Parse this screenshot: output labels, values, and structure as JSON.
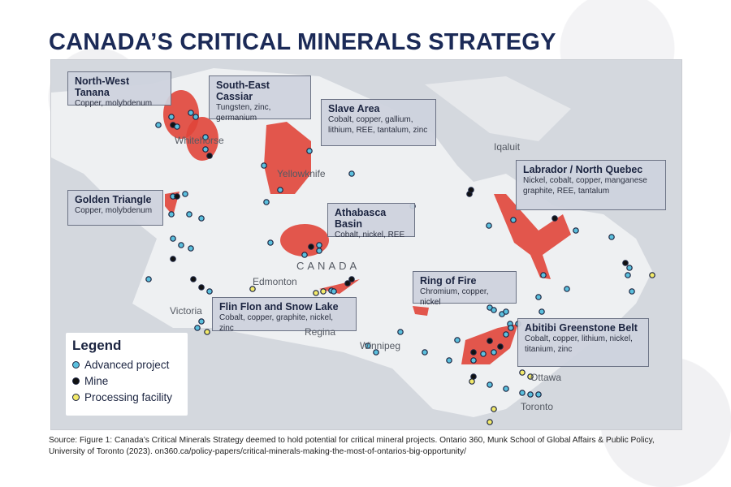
{
  "title": "CANADA’S CRITICAL MINERALS STRATEGY",
  "colors": {
    "title": "#1b2a57",
    "region": "#e0453a",
    "advanced_project": "#5bc0de",
    "mine": "#111111",
    "processing_facility": "#f3ea6a"
  },
  "regions": [
    {
      "name": "North-West Tanana",
      "minerals": "Copper, molybdenum"
    },
    {
      "name": "South-East Cassiar",
      "minerals": "Tungsten, zinc, germanium"
    },
    {
      "name": "Slave Area",
      "minerals": "Cobalt, copper, gallium, lithium, REE, tantalum, zinc"
    },
    {
      "name": "Golden Triangle",
      "minerals": "Copper, molybdenum"
    },
    {
      "name": "Athabasca Basin",
      "minerals": "Cobalt, nickel, REE"
    },
    {
      "name": "Labrador / North Quebec",
      "minerals": "Nickel, cobalt, copper, manganese graphite, REE, tantalum"
    },
    {
      "name": "Ring of Fire",
      "minerals": "Chromium, copper, nickel"
    },
    {
      "name": "Flin Flon and Snow Lake",
      "minerals": "Cobalt, copper, graphite, nickel, zinc"
    },
    {
      "name": "Abitibi Greenstone Belt",
      "minerals": "Cobalt, copper, lithium, nickel, titanium, zinc"
    }
  ],
  "places": [
    "Whitehorse",
    "Yellowknife",
    "Iqaluit",
    "CANADA",
    "Edmonton",
    "Victoria",
    "Regina",
    "Winnipeg",
    "Ottawa",
    "Toronto"
  ],
  "legend": {
    "title": "Legend",
    "items": [
      "Advanced project",
      "Mine",
      "Processing facility"
    ]
  },
  "source": "Source: Figure 1: Canada’s Critical Minerals Strategy deemed to hold potential for critical mineral projects. Ontario 360, Munk School of Global Affairs & Public Policy, University of Toronto (2023). on360.ca/policy-papers/critical-minerals-making-the-most-of-ontarios-big-opportunity/"
}
